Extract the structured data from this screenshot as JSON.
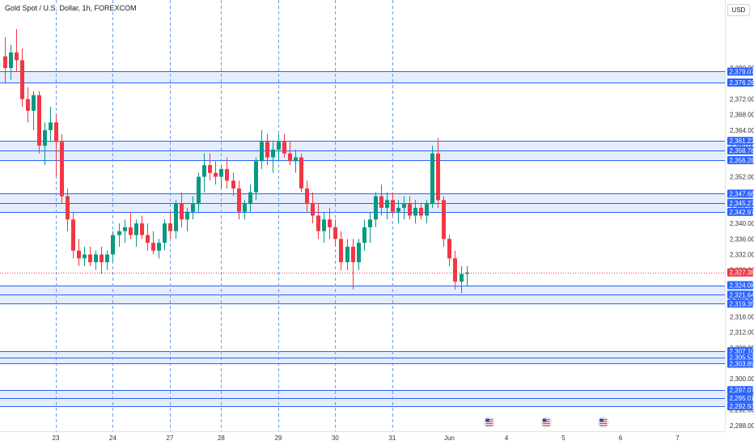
{
  "header": {
    "symbol_title": "Gold Spot / U.S. Dollar, 1h, FOREXCOM",
    "currency": "USD"
  },
  "colors": {
    "up": "#089981",
    "down": "#f23645",
    "zone_fill": "#dfe8fb",
    "zone_line": "#2962ff",
    "badge": "#2962ff",
    "current_badge": "#f23645",
    "session_line": "#6d9bf0"
  },
  "chart_data": {
    "type": "candlestick",
    "symbol": "Gold Spot / U.S. Dollar",
    "timeframe": "1h",
    "exchange": "FOREXCOM",
    "currency": "USD",
    "ylim": [
      2286.5,
      2397.5
    ],
    "y_ticks": [
      "2,288.00",
      "2,292.00",
      "2,296.00",
      "2,300.00",
      "2,304.00",
      "2,308.00",
      "2,312.00",
      "2,316.00",
      "2,320.00",
      "2,324.00",
      "2,328.00",
      "2,332.00",
      "2,336.00",
      "2,340.00",
      "2,344.00",
      "2,348.00",
      "2,352.00",
      "2,356.00",
      "2,360.00",
      "2,364.00",
      "2,368.00",
      "2,372.00",
      "2,376.00",
      "2,380.00"
    ],
    "x_ticks": [
      {
        "label": "23",
        "bar": 9
      },
      {
        "label": "24",
        "bar": 19
      },
      {
        "label": "27",
        "bar": 29
      },
      {
        "label": "28",
        "bar": 38
      },
      {
        "label": "29",
        "bar": 48
      },
      {
        "label": "30",
        "bar": 58
      },
      {
        "label": "31",
        "bar": 68
      },
      {
        "label": "Jun",
        "bar": 78
      },
      {
        "label": "4",
        "bar": 88
      },
      {
        "label": "5",
        "bar": 98
      },
      {
        "label": "6",
        "bar": 108
      },
      {
        "label": "7",
        "bar": 118
      }
    ],
    "session_lines_at_bars": [
      9,
      19,
      29,
      38,
      48,
      58,
      68
    ],
    "zones": [
      {
        "top": 2379.07,
        "bottom": 2376.26
      },
      {
        "top": 2361.22,
        "bottom": 2356.28
      },
      {
        "top": 2347.66,
        "bottom": 2342.97
      },
      {
        "top": 2324.08,
        "bottom": 2319.35
      },
      {
        "top": 2307.1,
        "bottom": 2303.89
      },
      {
        "top": 2297.07,
        "bottom": 2292.93
      }
    ],
    "levels": [
      {
        "value": 2379.07,
        "label": "2,379.07"
      },
      {
        "value": 2376.26,
        "label": "2,376.26"
      },
      {
        "value": 2361.22,
        "label": "2,361.22"
      },
      {
        "value": 2358.78,
        "label": "2,358.78"
      },
      {
        "value": 2356.28,
        "label": "2,356.28"
      },
      {
        "value": 2347.66,
        "label": "2,347.66"
      },
      {
        "value": 2345.27,
        "label": "2,345.27"
      },
      {
        "value": 2342.97,
        "label": "2,342.97"
      },
      {
        "value": 2324.08,
        "label": "2,324.08"
      },
      {
        "value": 2321.64,
        "label": "2,321.64"
      },
      {
        "value": 2319.35,
        "label": "2,319.35"
      },
      {
        "value": 2307.1,
        "label": "2,307.10"
      },
      {
        "value": 2305.53,
        "label": "2,305.53"
      },
      {
        "value": 2303.89,
        "label": "2,303.89"
      },
      {
        "value": 2297.07,
        "label": "2,297.07"
      },
      {
        "value": 2295.01,
        "label": "2,295.01"
      },
      {
        "value": 2292.93,
        "label": "2,292.93"
      }
    ],
    "current_price": {
      "value": 2327.38,
      "label": "2,327.38"
    },
    "event_markers_at_bars": [
      85,
      95,
      105
    ],
    "bar_count_visible": 120,
    "candles": [
      {
        "o": 2383,
        "h": 2388,
        "l": 2376,
        "c": 2380
      },
      {
        "o": 2380,
        "h": 2386,
        "l": 2377,
        "c": 2384
      },
      {
        "o": 2384,
        "h": 2390,
        "l": 2379,
        "c": 2382
      },
      {
        "o": 2382,
        "h": 2385,
        "l": 2370,
        "c": 2372
      },
      {
        "o": 2372,
        "h": 2375,
        "l": 2366,
        "c": 2369
      },
      {
        "o": 2369,
        "h": 2374,
        "l": 2364,
        "c": 2373
      },
      {
        "o": 2373,
        "h": 2374,
        "l": 2358,
        "c": 2360
      },
      {
        "o": 2360,
        "h": 2366,
        "l": 2355,
        "c": 2364
      },
      {
        "o": 2364,
        "h": 2370,
        "l": 2361,
        "c": 2366
      },
      {
        "o": 2366,
        "h": 2368,
        "l": 2352,
        "c": 2361
      },
      {
        "o": 2361,
        "h": 2363,
        "l": 2345,
        "c": 2347
      },
      {
        "o": 2347,
        "h": 2349,
        "l": 2338,
        "c": 2341
      },
      {
        "o": 2341,
        "h": 2343,
        "l": 2331,
        "c": 2333
      },
      {
        "o": 2333,
        "h": 2336,
        "l": 2329,
        "c": 2331
      },
      {
        "o": 2331,
        "h": 2334,
        "l": 2329,
        "c": 2332
      },
      {
        "o": 2332,
        "h": 2334,
        "l": 2329,
        "c": 2330
      },
      {
        "o": 2330,
        "h": 2333,
        "l": 2328,
        "c": 2332
      },
      {
        "o": 2332,
        "h": 2334,
        "l": 2327,
        "c": 2330
      },
      {
        "o": 2330,
        "h": 2333,
        "l": 2328,
        "c": 2332
      },
      {
        "o": 2332,
        "h": 2338,
        "l": 2330,
        "c": 2337
      },
      {
        "o": 2337,
        "h": 2340,
        "l": 2334,
        "c": 2338
      },
      {
        "o": 2338,
        "h": 2341,
        "l": 2335,
        "c": 2339
      },
      {
        "o": 2339,
        "h": 2343,
        "l": 2336,
        "c": 2337
      },
      {
        "o": 2337,
        "h": 2341,
        "l": 2334,
        "c": 2340
      },
      {
        "o": 2340,
        "h": 2342,
        "l": 2336,
        "c": 2337
      },
      {
        "o": 2337,
        "h": 2340,
        "l": 2333,
        "c": 2335
      },
      {
        "o": 2335,
        "h": 2338,
        "l": 2332,
        "c": 2333
      },
      {
        "o": 2333,
        "h": 2336,
        "l": 2331,
        "c": 2335
      },
      {
        "o": 2335,
        "h": 2341,
        "l": 2333,
        "c": 2340
      },
      {
        "o": 2340,
        "h": 2343,
        "l": 2336,
        "c": 2338
      },
      {
        "o": 2338,
        "h": 2346,
        "l": 2336,
        "c": 2345
      },
      {
        "o": 2345,
        "h": 2348,
        "l": 2339,
        "c": 2341
      },
      {
        "o": 2341,
        "h": 2344,
        "l": 2338,
        "c": 2343
      },
      {
        "o": 2343,
        "h": 2347,
        "l": 2341,
        "c": 2345
      },
      {
        "o": 2345,
        "h": 2353,
        "l": 2343,
        "c": 2352
      },
      {
        "o": 2352,
        "h": 2358,
        "l": 2348,
        "c": 2355
      },
      {
        "o": 2355,
        "h": 2358,
        "l": 2351,
        "c": 2353
      },
      {
        "o": 2353,
        "h": 2356,
        "l": 2350,
        "c": 2352
      },
      {
        "o": 2352,
        "h": 2355,
        "l": 2349,
        "c": 2354
      },
      {
        "o": 2354,
        "h": 2357,
        "l": 2349,
        "c": 2351
      },
      {
        "o": 2351,
        "h": 2353,
        "l": 2347,
        "c": 2349
      },
      {
        "o": 2349,
        "h": 2351,
        "l": 2341,
        "c": 2343
      },
      {
        "o": 2343,
        "h": 2346,
        "l": 2341,
        "c": 2345
      },
      {
        "o": 2345,
        "h": 2350,
        "l": 2343,
        "c": 2348
      },
      {
        "o": 2348,
        "h": 2357,
        "l": 2346,
        "c": 2356
      },
      {
        "o": 2356,
        "h": 2364,
        "l": 2354,
        "c": 2361
      },
      {
        "o": 2361,
        "h": 2363,
        "l": 2355,
        "c": 2357
      },
      {
        "o": 2357,
        "h": 2361,
        "l": 2353,
        "c": 2359
      },
      {
        "o": 2359,
        "h": 2363,
        "l": 2356,
        "c": 2361
      },
      {
        "o": 2361,
        "h": 2363,
        "l": 2357,
        "c": 2358
      },
      {
        "o": 2358,
        "h": 2361,
        "l": 2355,
        "c": 2356
      },
      {
        "o": 2356,
        "h": 2359,
        "l": 2353,
        "c": 2357
      },
      {
        "o": 2357,
        "h": 2358,
        "l": 2348,
        "c": 2349
      },
      {
        "o": 2349,
        "h": 2351,
        "l": 2343,
        "c": 2345
      },
      {
        "o": 2345,
        "h": 2348,
        "l": 2340,
        "c": 2342
      },
      {
        "o": 2342,
        "h": 2345,
        "l": 2336,
        "c": 2338
      },
      {
        "o": 2338,
        "h": 2343,
        "l": 2335,
        "c": 2341
      },
      {
        "o": 2341,
        "h": 2344,
        "l": 2336,
        "c": 2339
      },
      {
        "o": 2339,
        "h": 2341,
        "l": 2334,
        "c": 2336
      },
      {
        "o": 2336,
        "h": 2338,
        "l": 2328,
        "c": 2330
      },
      {
        "o": 2330,
        "h": 2336,
        "l": 2328,
        "c": 2334
      },
      {
        "o": 2334,
        "h": 2336,
        "l": 2323,
        "c": 2330
      },
      {
        "o": 2330,
        "h": 2336,
        "l": 2328,
        "c": 2335
      },
      {
        "o": 2335,
        "h": 2341,
        "l": 2333,
        "c": 2339
      },
      {
        "o": 2339,
        "h": 2343,
        "l": 2335,
        "c": 2341
      },
      {
        "o": 2341,
        "h": 2348,
        "l": 2339,
        "c": 2347
      },
      {
        "o": 2347,
        "h": 2350,
        "l": 2342,
        "c": 2344
      },
      {
        "o": 2344,
        "h": 2348,
        "l": 2341,
        "c": 2346
      },
      {
        "o": 2346,
        "h": 2348,
        "l": 2342,
        "c": 2343
      },
      {
        "o": 2343,
        "h": 2346,
        "l": 2340,
        "c": 2344
      },
      {
        "o": 2344,
        "h": 2347,
        "l": 2341,
        "c": 2345
      },
      {
        "o": 2345,
        "h": 2347,
        "l": 2341,
        "c": 2342
      },
      {
        "o": 2342,
        "h": 2346,
        "l": 2340,
        "c": 2344
      },
      {
        "o": 2344,
        "h": 2345,
        "l": 2341,
        "c": 2342
      },
      {
        "o": 2342,
        "h": 2346,
        "l": 2340,
        "c": 2345
      },
      {
        "o": 2345,
        "h": 2360,
        "l": 2344,
        "c": 2358
      },
      {
        "o": 2358,
        "h": 2362,
        "l": 2344,
        "c": 2346
      },
      {
        "o": 2346,
        "h": 2347,
        "l": 2334,
        "c": 2336
      },
      {
        "o": 2336,
        "h": 2337,
        "l": 2329,
        "c": 2331
      },
      {
        "o": 2331,
        "h": 2333,
        "l": 2323,
        "c": 2325
      },
      {
        "o": 2325,
        "h": 2329,
        "l": 2322,
        "c": 2327
      },
      {
        "o": 2327,
        "h": 2329,
        "l": 2324,
        "c": 2327.38
      }
    ]
  }
}
